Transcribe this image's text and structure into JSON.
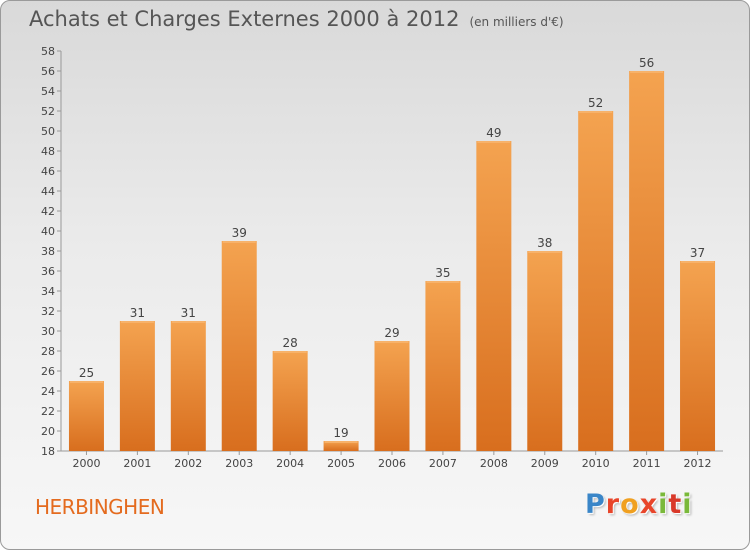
{
  "title": "Achats et Charges Externes 2000 à 2012",
  "unit": "(en milliers d'€)",
  "commune": "HERBINGHEN",
  "logo": "Proxiti",
  "colors": {
    "bar_light": "#f4a350",
    "bar_dark": "#d86e1e",
    "title": "#555555",
    "commune": "#e46b1f"
  },
  "chart_data": {
    "type": "bar",
    "categories": [
      "2000",
      "2001",
      "2002",
      "2003",
      "2004",
      "2005",
      "2006",
      "2007",
      "2008",
      "2009",
      "2010",
      "2011",
      "2012"
    ],
    "values": [
      25,
      31,
      31,
      39,
      28,
      19,
      29,
      35,
      49,
      38,
      52,
      56,
      37
    ],
    "ylim": [
      18,
      58
    ],
    "yticks": [
      18,
      20,
      22,
      24,
      26,
      28,
      30,
      32,
      34,
      36,
      38,
      40,
      42,
      44,
      46,
      48,
      50,
      52,
      54,
      56,
      58
    ],
    "grid": false,
    "legend": "none",
    "xlabel": "",
    "ylabel": ""
  }
}
